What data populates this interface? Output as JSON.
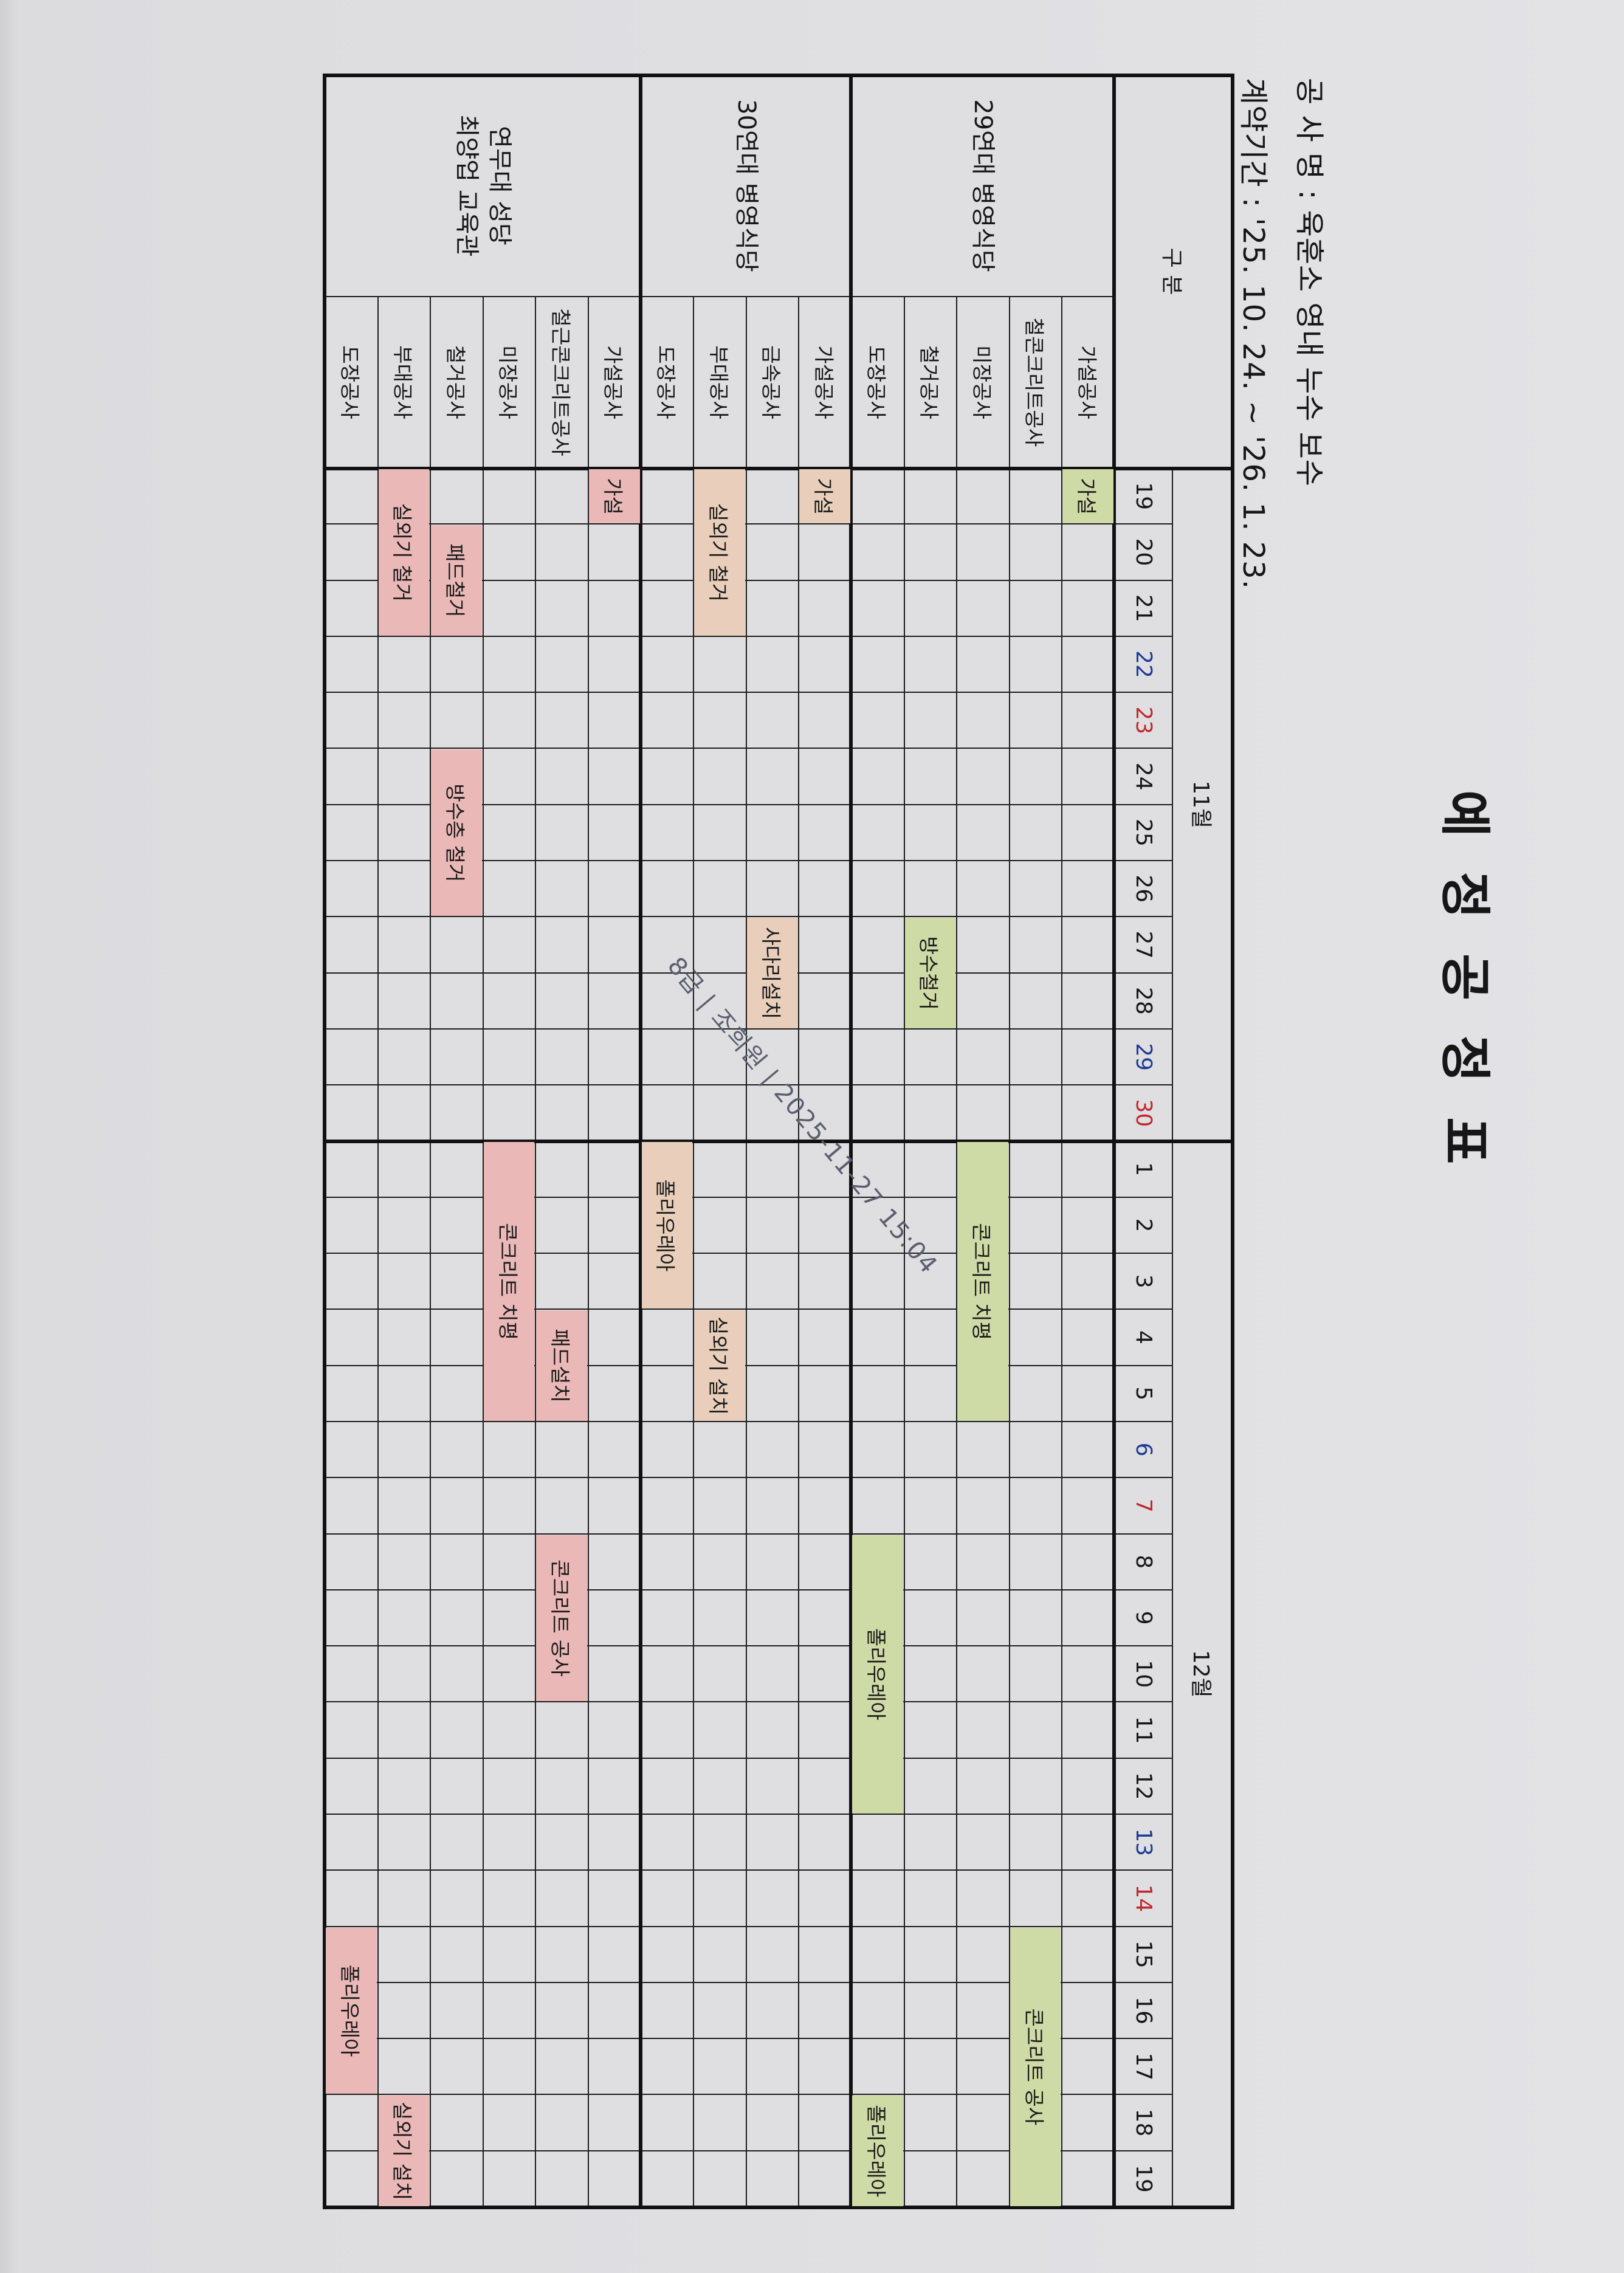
{
  "title": "예 정 공 정 표",
  "project_line": "공 사 명 : 육훈소 영내 누수 보수",
  "period_line": "계약기간 : '25. 10. 24. ~ '26. 1. 23.",
  "table": {
    "header_label": "구 분",
    "months": [
      {
        "label": "11월",
        "month": 11,
        "days": [
          19,
          20,
          21,
          22,
          23,
          24,
          25,
          26,
          27,
          28,
          29,
          30
        ]
      },
      {
        "label": "12월",
        "month": 12,
        "days": [
          1,
          2,
          3,
          4,
          5,
          6,
          7,
          8,
          9,
          10,
          11,
          12,
          13,
          14,
          15,
          16,
          17,
          18,
          19
        ]
      }
    ],
    "saturdays": [
      "11-22",
      "11-29",
      "12-6",
      "12-13"
    ],
    "sundays": [
      "11-23",
      "11-30",
      "12-7",
      "12-14"
    ],
    "day_colors": {
      "weekday": "#161616",
      "saturday": "#1f3a93",
      "sunday": "#c0282d"
    },
    "groups": [
      {
        "name_lines": [
          "29연대 병영식당"
        ],
        "color": "#cfdba6",
        "rows": [
          "가설공사",
          "철콘크리트공사",
          "미장공사",
          "철거공사",
          "도장공사"
        ]
      },
      {
        "name_lines": [
          "30연대 병영식당"
        ],
        "color": "#e9cfbb",
        "rows": [
          "가설공사",
          "금속공사",
          "부대공사",
          "도장공사"
        ]
      },
      {
        "name_lines": [
          "연무대 성당",
          "최양업 교육관"
        ],
        "color": "#ebb8b8",
        "rows": [
          "가설공사",
          "철근콘크리트공사",
          "미장공사",
          "철거공사",
          "부대공사",
          "도장공사"
        ]
      }
    ],
    "bars": [
      {
        "group": 0,
        "row": 0,
        "label": "가설",
        "from": "11-19",
        "to": "11-19"
      },
      {
        "group": 0,
        "row": 1,
        "label": "콘크리트 공사",
        "from": "12-15",
        "to": "12-19"
      },
      {
        "group": 0,
        "row": 2,
        "label": "콘크리트 치평",
        "from": "12-1",
        "to": "12-5"
      },
      {
        "group": 0,
        "row": 3,
        "label": "방수철거",
        "from": "11-27",
        "to": "11-28"
      },
      {
        "group": 0,
        "row": 4,
        "label": "폴리우레아",
        "from": "12-8",
        "to": "12-12"
      },
      {
        "group": 0,
        "row": 4,
        "label": "폴리우레아",
        "from": "12-18",
        "to": "12-19"
      },
      {
        "group": 1,
        "row": 0,
        "label": "가설",
        "from": "11-19",
        "to": "11-19"
      },
      {
        "group": 1,
        "row": 1,
        "label": "사다리설치",
        "from": "11-27",
        "to": "11-28"
      },
      {
        "group": 1,
        "row": 2,
        "label": "실외기 철거",
        "from": "11-19",
        "to": "11-21"
      },
      {
        "group": 1,
        "row": 2,
        "label": "실외기 설치",
        "from": "12-4",
        "to": "12-5"
      },
      {
        "group": 1,
        "row": 3,
        "label": "폴리우레아",
        "from": "12-1",
        "to": "12-3"
      },
      {
        "group": 2,
        "row": 0,
        "label": "가설",
        "from": "11-19",
        "to": "11-19"
      },
      {
        "group": 2,
        "row": 1,
        "label": "패드설치",
        "from": "12-4",
        "to": "12-5"
      },
      {
        "group": 2,
        "row": 1,
        "label": "콘크리트 공사",
        "from": "12-8",
        "to": "12-10"
      },
      {
        "group": 2,
        "row": 2,
        "label": "콘크리트 치평",
        "from": "12-1",
        "to": "12-5"
      },
      {
        "group": 2,
        "row": 3,
        "label": "패드철거",
        "from": "11-20",
        "to": "11-21"
      },
      {
        "group": 2,
        "row": 3,
        "label": "방수층 철거",
        "from": "11-24",
        "to": "11-26"
      },
      {
        "group": 2,
        "row": 4,
        "label": "실외기 철거",
        "from": "11-19",
        "to": "11-21"
      },
      {
        "group": 2,
        "row": 4,
        "label": "실외기 설치",
        "from": "12-18",
        "to": "12-19"
      },
      {
        "group": 2,
        "row": 5,
        "label": "폴리우레아",
        "from": "12-15",
        "to": "12-17"
      }
    ]
  },
  "watermark": "8급 | 조희원 | 2025-11-27 15:04"
}
